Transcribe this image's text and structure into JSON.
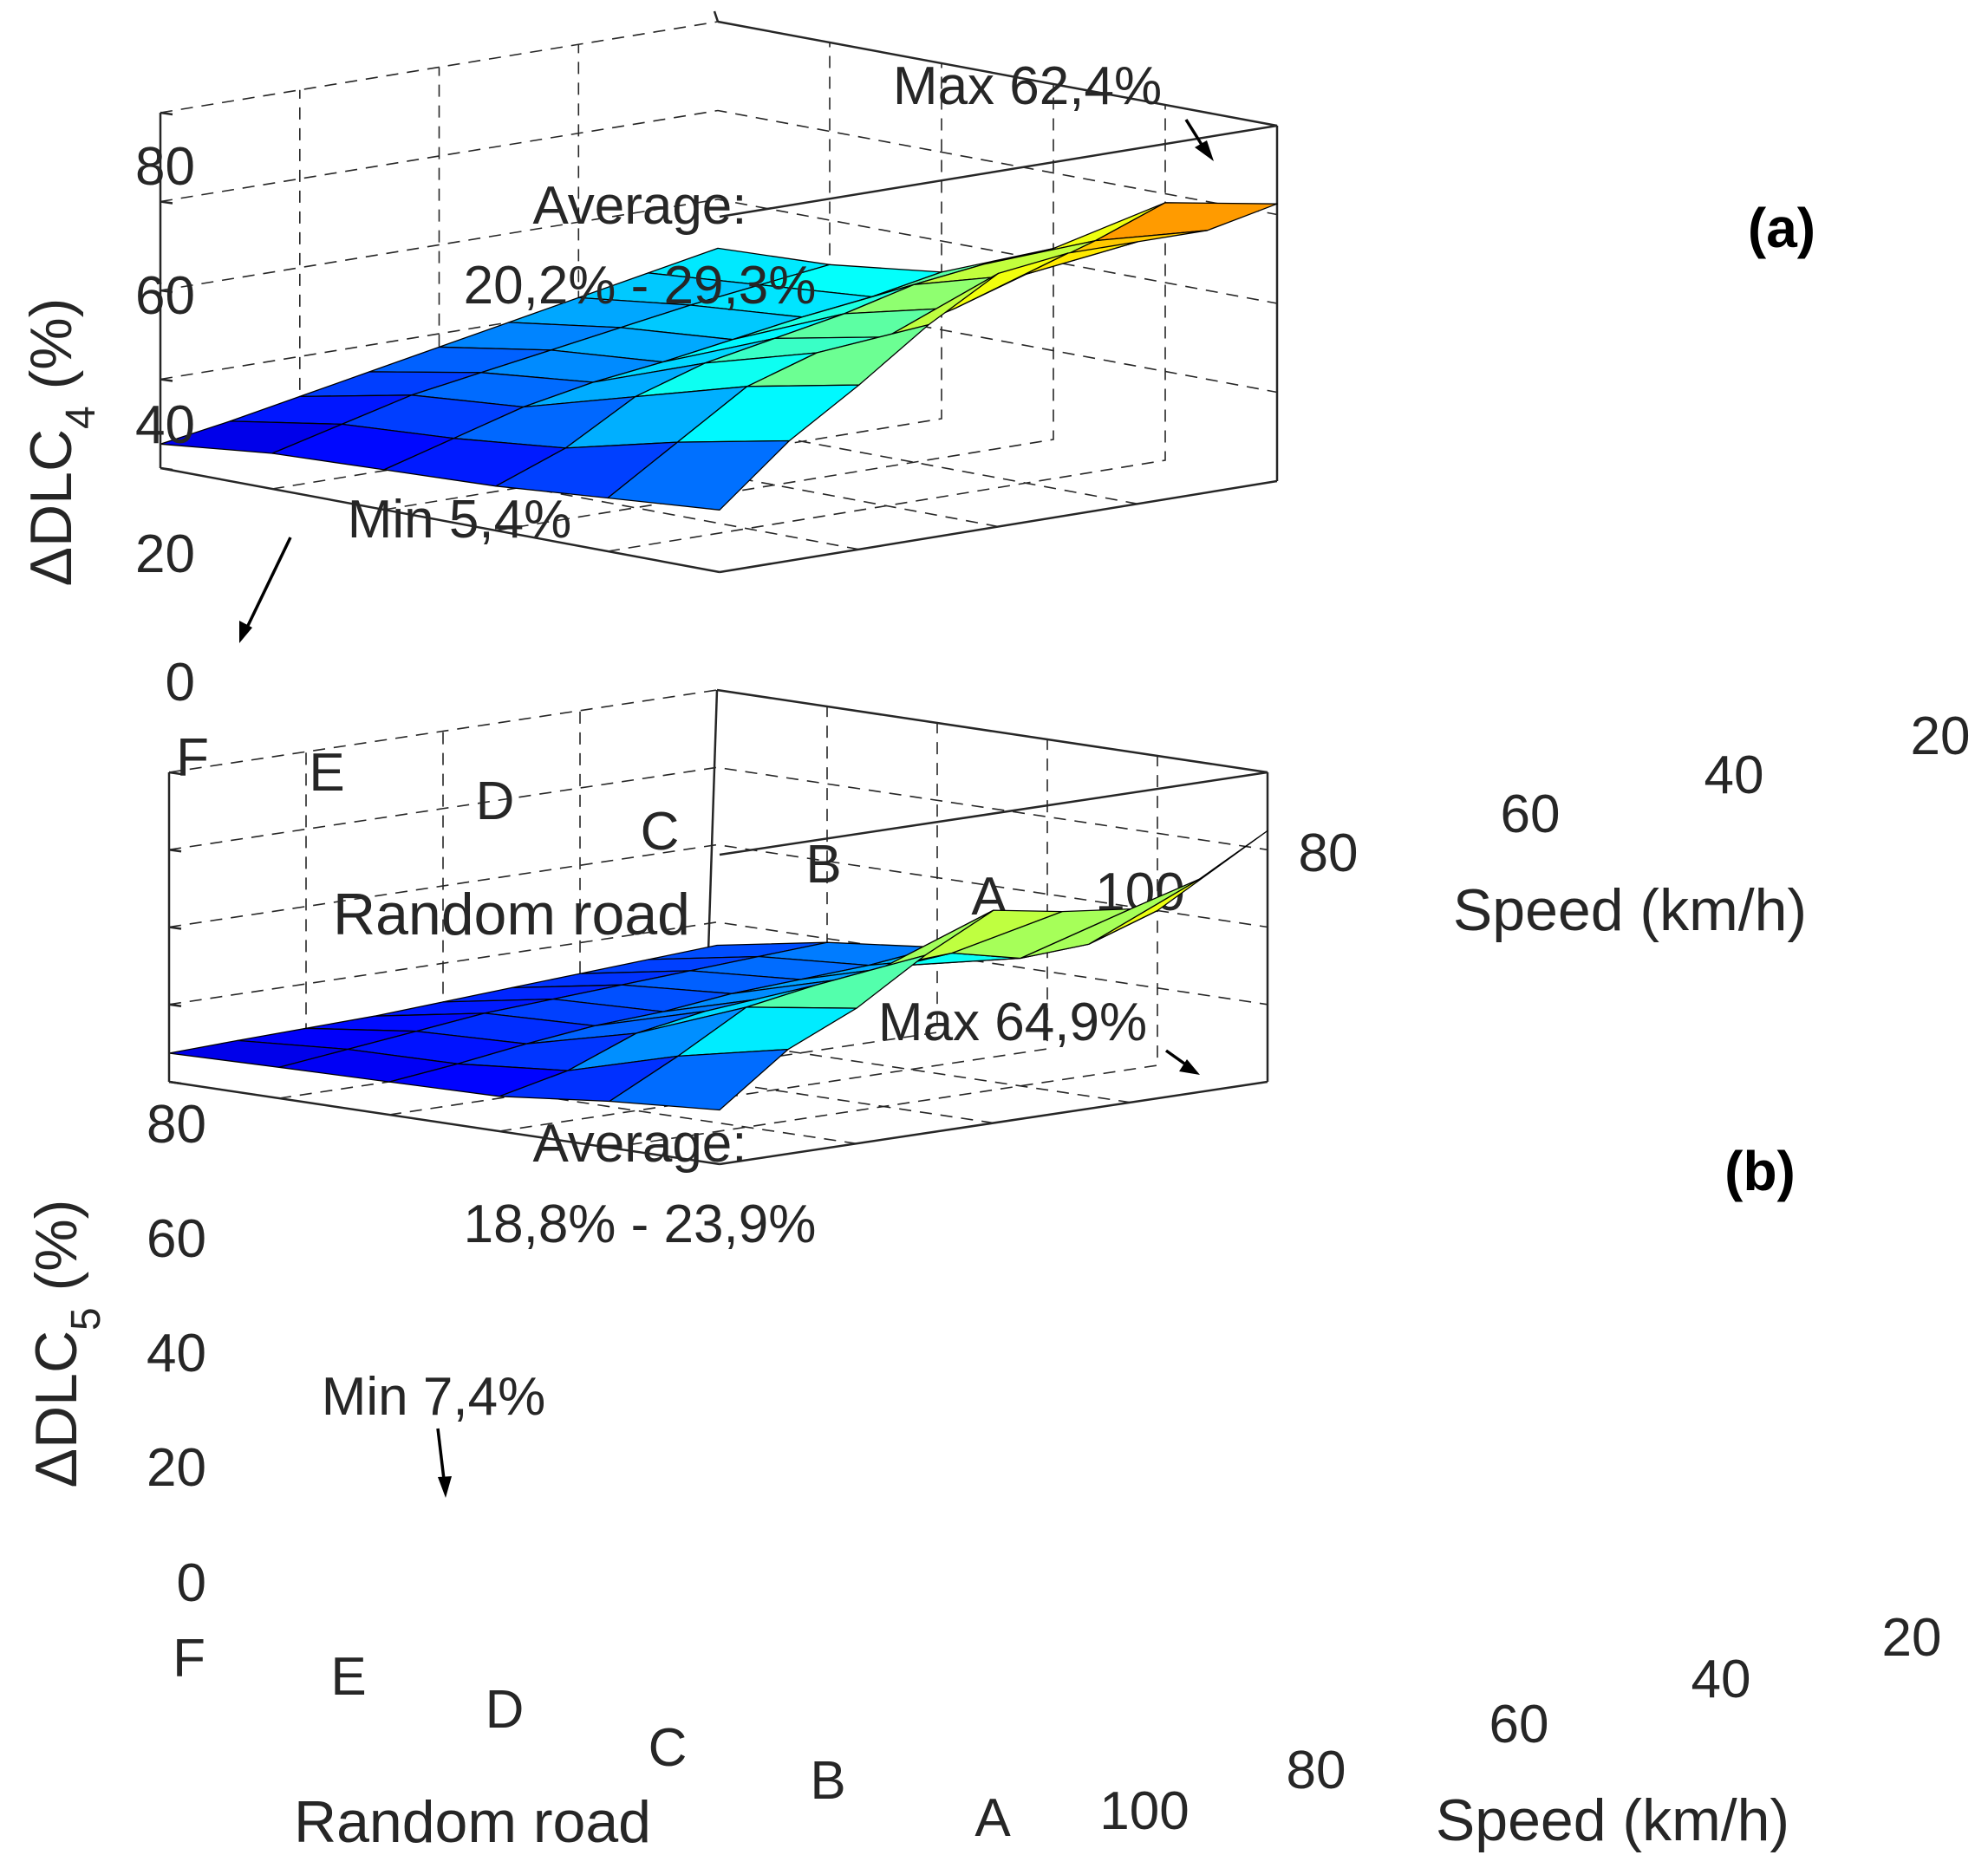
{
  "chart_data": [
    {
      "type": "surface",
      "panel_label": "(a)",
      "zlabel_main": "ΔDLC",
      "zlabel_sub": "4",
      "zlabel_unit": " (%)",
      "xlabel": "Random road",
      "ylabel": "Speed (km/h)",
      "x_categories": [
        "F",
        "E",
        "D",
        "C",
        "B",
        "A"
      ],
      "y_ticks": [
        "100",
        "80",
        "60",
        "40",
        "20"
      ],
      "z_ticks": [
        "0",
        "20",
        "40",
        "60",
        "80"
      ],
      "zlim": [
        0,
        80
      ],
      "grid": true,
      "colormap": "jet",
      "speed_values": [
        100,
        90,
        80,
        70,
        60,
        50,
        40,
        30,
        20
      ],
      "road_values": [
        "F",
        "E",
        "D",
        "C",
        "B",
        "A"
      ],
      "z_values": [
        [
          5.4,
          8.0,
          11.0,
          14.0,
          17.0,
          20.0,
          23.0,
          26.0,
          29.0
        ],
        [
          8.0,
          12.0,
          16.0,
          18.5,
          21.0,
          23.5,
          26.0,
          28.0,
          30.0
        ],
        [
          9.0,
          13.5,
          18.0,
          21.0,
          23.0,
          25.5,
          28.0,
          30.0,
          33.0
        ],
        [
          10.0,
          16.0,
          25.0,
          30.0,
          33.0,
          36.0,
          40.0,
          42.0,
          43.0
        ],
        [
          12.0,
          22.0,
          32.0,
          37.0,
          38.0,
          42.0,
          47.0,
          52.0,
          58.0
        ],
        [
          14.0,
          27.0,
          37.0,
          48.0,
          57.0,
          59.0,
          59.0,
          59.0,
          62.4
        ]
      ],
      "annotations": {
        "max": "Max 62,4%",
        "min": "Min 5,4%",
        "average_title": "Average:",
        "average_range": "20,2% - 29,3%"
      }
    },
    {
      "type": "surface",
      "panel_label": "(b)",
      "zlabel_main": "ΔDLC",
      "zlabel_sub": "5",
      "zlabel_unit": " (%)",
      "xlabel": "Random road",
      "ylabel": "Speed (km/h)",
      "x_categories": [
        "F",
        "E",
        "D",
        "C",
        "B",
        "A"
      ],
      "y_ticks": [
        "100",
        "80",
        "60",
        "40",
        "20"
      ],
      "z_ticks": [
        "0",
        "20",
        "40",
        "60",
        "80"
      ],
      "zlim": [
        0,
        80
      ],
      "grid": true,
      "colormap": "jet",
      "speed_values": [
        100,
        90,
        80,
        70,
        60,
        50,
        40,
        30,
        20
      ],
      "road_values": [
        "F",
        "E",
        "D",
        "C",
        "B",
        "A"
      ],
      "z_values": [
        [
          7.4,
          8.0,
          8.5,
          9.0,
          10.0,
          11.0,
          12.0,
          13.0,
          14.0
        ],
        [
          8.0,
          10.0,
          12.0,
          14.0,
          15.0,
          16.0,
          17.0,
          18.0,
          19.0
        ],
        [
          8.5,
          10.5,
          13.0,
          15.0,
          16.0,
          18.0,
          19.0,
          20.0,
          22.0
        ],
        [
          9.0,
          13.0,
          20.0,
          23.0,
          24.0,
          26.0,
          27.0,
          27.0,
          28.0
        ],
        [
          12.0,
          21.0,
          31.0,
          34.0,
          36.0,
          37.0,
          33.0,
          34.0,
          40.0
        ],
        [
          14.0,
          27.0,
          35.0,
          46.0,
          55.0,
          52.0,
          50.0,
          55.0,
          64.9
        ]
      ],
      "annotations": {
        "max": "Max 64,9%",
        "min": "Min 7,4%",
        "average_title": "Average:",
        "average_range": "18,8% - 23,9%"
      }
    }
  ]
}
